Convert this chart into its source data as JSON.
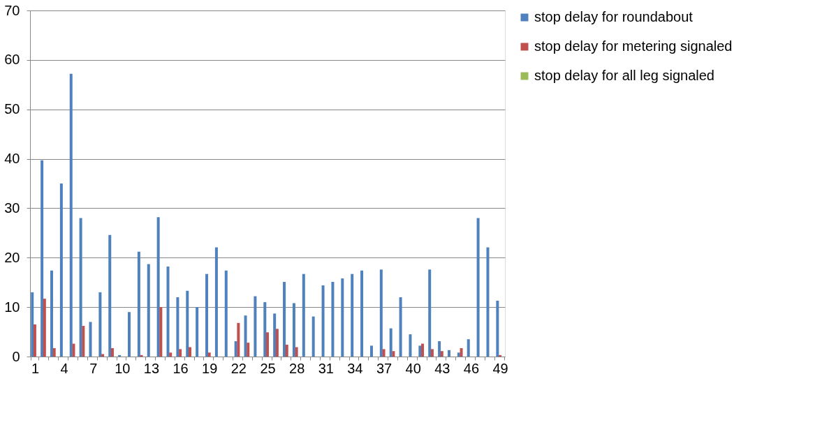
{
  "chart_data": {
    "type": "bar",
    "categories": [
      "1",
      null,
      null,
      "4",
      null,
      null,
      "7",
      null,
      null,
      "10",
      null,
      null,
      "13",
      null,
      null,
      "16",
      null,
      null,
      "19",
      null,
      null,
      "22",
      null,
      null,
      "25",
      null,
      null,
      "28",
      null,
      null,
      "31",
      null,
      null,
      "34",
      null,
      null,
      "37",
      null,
      null,
      "40",
      null,
      null,
      "43",
      null,
      null,
      "46",
      null,
      null,
      "49"
    ],
    "series": [
      {
        "name": "stop delay for roundabout",
        "color": "#4f81bd",
        "values": [
          13,
          39.7,
          17.4,
          35,
          57.2,
          28,
          7,
          13,
          24.6,
          0.3,
          9,
          21.2,
          18.7,
          28.2,
          18.2,
          12,
          13.3,
          10,
          16.7,
          22.1,
          17.4,
          3.1,
          8.3,
          12.2,
          11,
          8.7,
          15.1,
          10.8,
          16.7,
          8.1,
          14.4,
          15.1,
          15.8,
          16.7,
          17.4,
          2.2,
          17.6,
          5.7,
          12,
          4.5,
          2.2,
          17.6,
          3.1,
          1.3,
          0.8,
          3.5,
          28,
          22.1,
          11.3
        ]
      },
      {
        "name": "stop delay for metering signaled",
        "color": "#c0504d",
        "values": [
          6.5,
          11.7,
          1.7,
          0,
          2.6,
          6.2,
          0,
          0.5,
          1.7,
          0,
          0,
          0.3,
          0,
          10,
          0.8,
          1.5,
          1.9,
          0,
          0.8,
          0,
          0,
          6.8,
          2.8,
          0,
          4.9,
          5.6,
          2.4,
          1.9,
          0,
          0,
          0,
          0,
          0,
          0,
          0,
          0,
          1.5,
          1.1,
          0,
          0,
          2.6,
          1.5,
          1.1,
          0,
          1.7,
          0,
          0,
          0,
          0.3
        ]
      },
      {
        "name": "stop delay for all leg signaled",
        "color": "#9bbb59",
        "values": [
          0,
          0,
          0,
          0,
          0,
          0,
          0,
          0,
          0,
          0,
          0,
          0,
          0,
          0,
          0,
          0,
          0,
          0,
          0,
          0,
          0,
          0,
          0,
          0,
          0,
          0,
          0,
          0,
          0,
          0,
          0,
          0,
          0,
          0,
          0,
          0,
          0,
          0,
          0,
          0,
          0,
          0,
          0,
          0,
          0,
          0,
          0,
          0,
          0
        ]
      }
    ],
    "ylim": [
      0,
      70
    ],
    "yticks": [
      0,
      10,
      20,
      30,
      40,
      50,
      60,
      70
    ],
    "grid": "y",
    "legend": "right"
  }
}
